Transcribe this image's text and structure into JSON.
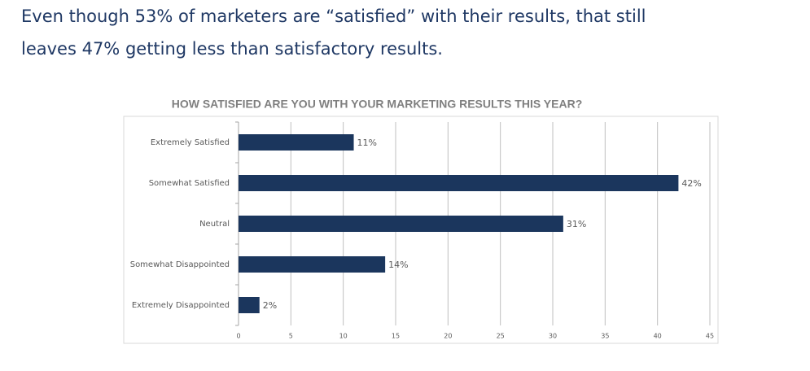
{
  "header": {
    "lines": [
      "Even though 53% of marketers are “satisfied” with their results, that still",
      "leaves 47% getting less than satisfactory results."
    ]
  },
  "chart_data": {
    "type": "bar",
    "orientation": "horizontal",
    "title": "HOW SATISFIED  ARE YOU WITH YOUR MARKETING  RESULTS  THIS YEAR?",
    "categories": [
      "Extremely Satisfied",
      "Somewhat Satisfied",
      "Neutral",
      "Somewhat Disappointed",
      "Extremely Disappointed"
    ],
    "values": [
      11,
      42,
      31,
      14,
      2
    ],
    "value_labels": [
      "11%",
      "42%",
      "31%",
      "14%",
      "2%"
    ],
    "color": "#1b365d",
    "xlim": [
      0,
      45
    ],
    "xticks": [
      0,
      5,
      10,
      15,
      20,
      25,
      30,
      35,
      40,
      45
    ],
    "grid": true
  }
}
